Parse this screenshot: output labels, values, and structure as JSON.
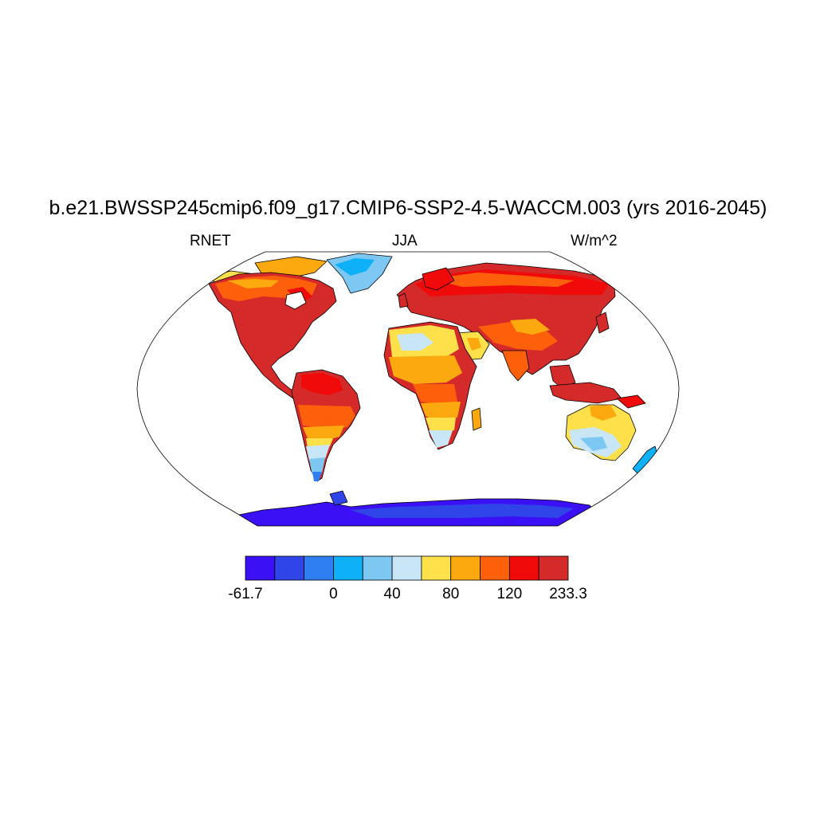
{
  "header": {
    "title": "b.e21.BWSSP245cmip6.f09_g17.CMIP6-SSP2-4.5-WACCM.003 (yrs 2016-2045)",
    "left_label": "RNET",
    "center_label": "JJA",
    "right_label": "W/m^2"
  },
  "map": {
    "projection": "Robinson",
    "ocean_color": "#ffffff",
    "coastline_color": "#000000"
  },
  "colorbar": {
    "colors": [
      "#3b10f5",
      "#2f45e8",
      "#2f7ff2",
      "#0eb0f7",
      "#7cc8f2",
      "#c9e6f7",
      "#fde04a",
      "#fba90e",
      "#fc600a",
      "#f00a0a",
      "#d52a2a"
    ],
    "tick_labels": [
      {
        "text": "-61.7",
        "boundary": 0
      },
      {
        "text": "0",
        "boundary": 3
      },
      {
        "text": "40",
        "boundary": 5
      },
      {
        "text": "80",
        "boundary": 7
      },
      {
        "text": "120",
        "boundary": 9
      },
      {
        "text": "233.3",
        "boundary": 11
      }
    ]
  }
}
